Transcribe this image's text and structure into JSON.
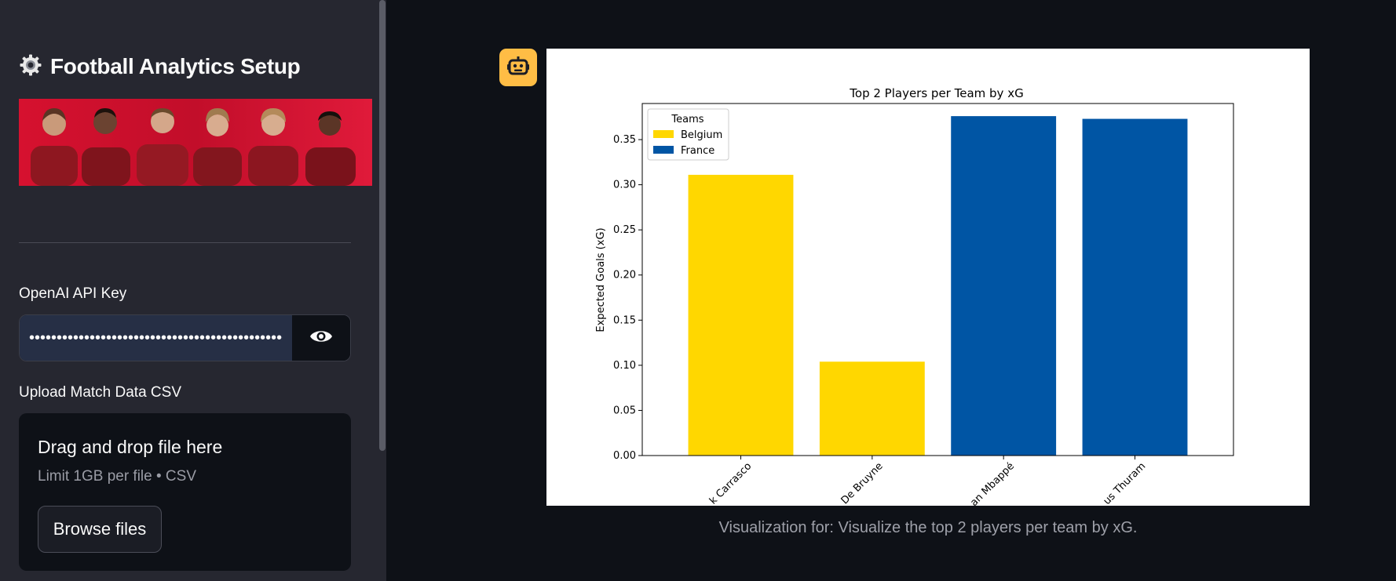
{
  "sidebar": {
    "title": "Football Analytics Setup",
    "title_icon": "gear-icon",
    "banner_alt": "team-photo",
    "api_key": {
      "label": "OpenAI API Key",
      "value": "••••••••••••••••••••••••••••••••••••••••••••••••",
      "toggle_icon": "eye-icon"
    },
    "upload": {
      "label": "Upload Match Data CSV",
      "drop_text": "Drag and drop file here",
      "limit_text": "Limit 1GB per file • CSV",
      "browse_label": "Browse files"
    }
  },
  "main": {
    "avatar_icon": "robot-icon",
    "caption": "Visualization for: Visualize the top 2 players per team by xG."
  },
  "colors": {
    "sidebar_bg": "#262730",
    "main_bg": "#0e1117",
    "avatar_bg": "#ffbd45",
    "belgium": "#ffd700",
    "france": "#0055a4"
  },
  "chart_data": {
    "type": "bar",
    "title": "Top 2 Players per Team by xG",
    "xlabel": "",
    "ylabel": "Expected Goals (xG)",
    "categories": [
      "k Carrasco",
      "De Bruyne",
      "an Mbappé",
      "us Thuram"
    ],
    "values": [
      0.311,
      0.104,
      0.376,
      0.373
    ],
    "bar_teams": [
      "Belgium",
      "Belgium",
      "France",
      "France"
    ],
    "ylim": [
      0,
      0.39
    ],
    "yticks": [
      "0.00",
      "0.05",
      "0.10",
      "0.15",
      "0.20",
      "0.25",
      "0.30",
      "0.35"
    ],
    "legend": {
      "title": "Teams",
      "position": "top-left",
      "entries": [
        {
          "name": "Belgium",
          "color": "#ffd700"
        },
        {
          "name": "France",
          "color": "#0055a4"
        }
      ]
    },
    "grid": false
  }
}
